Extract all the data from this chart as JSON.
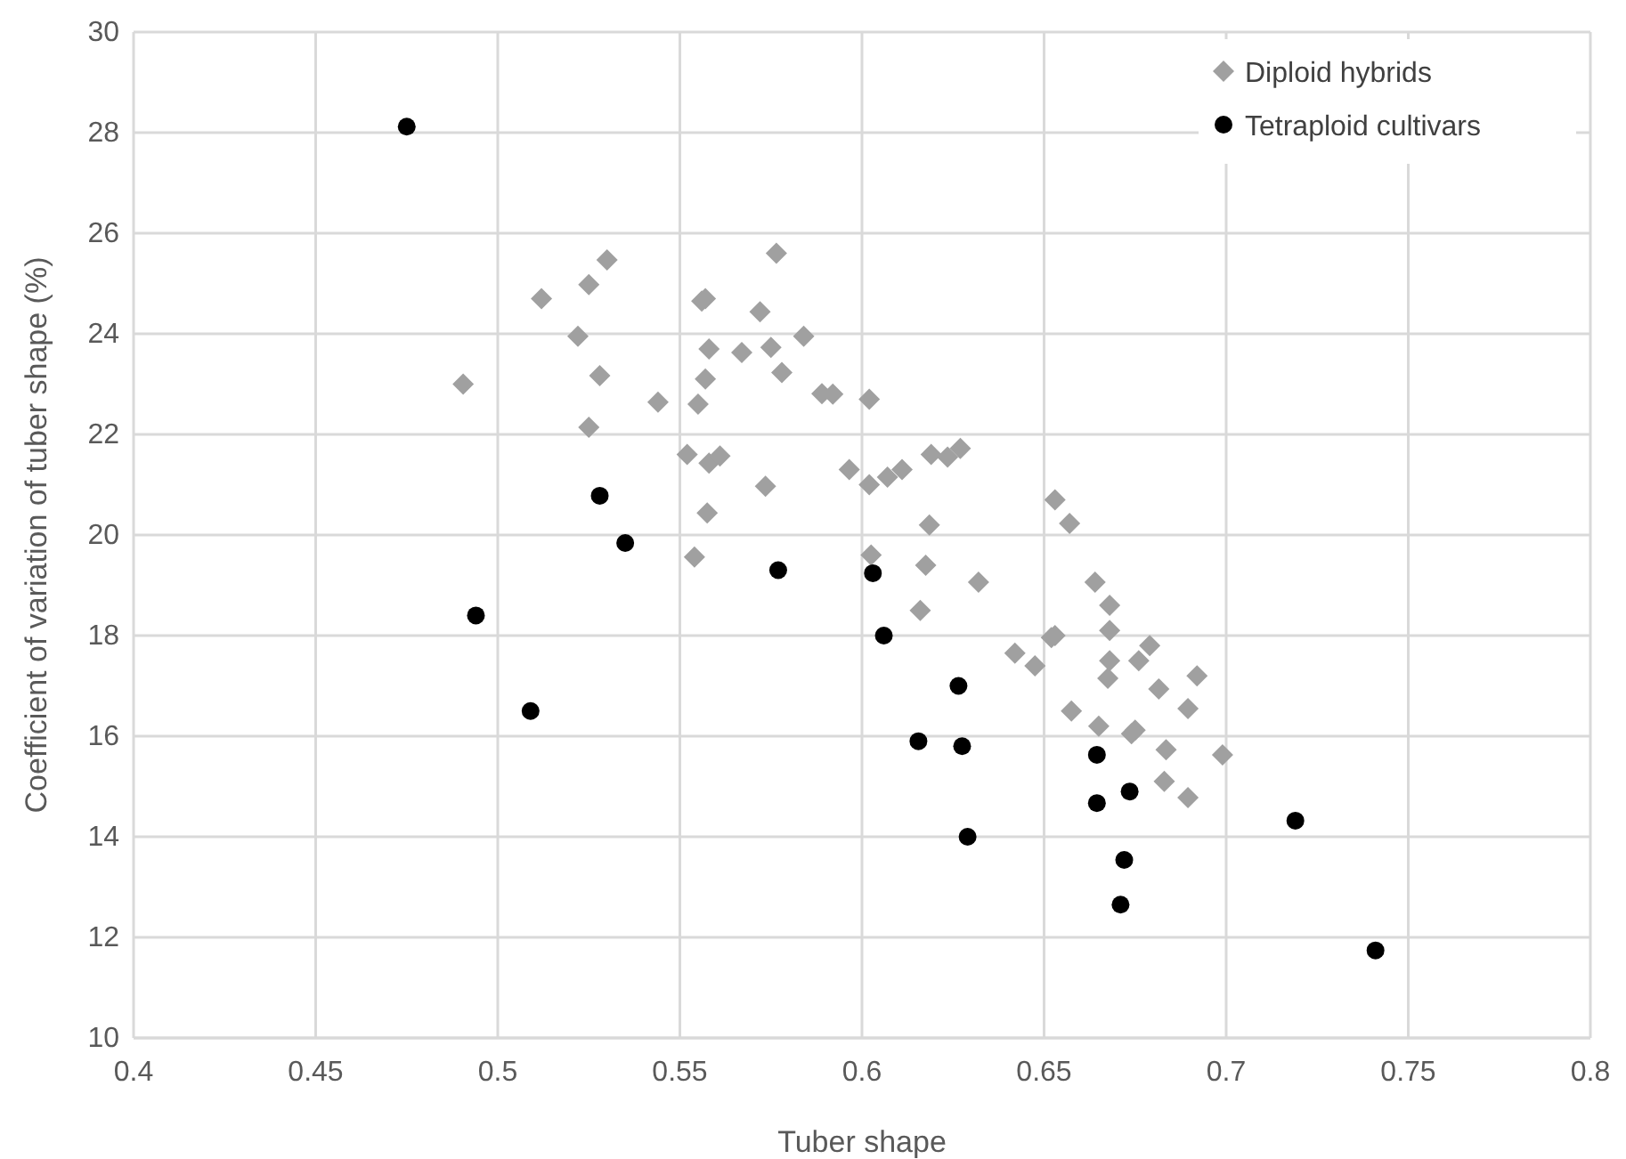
{
  "chart_data": {
    "type": "scatter",
    "xlabel": "Tuber shape",
    "ylabel": "Coefficient of variation of tuber shape (%)",
    "xlim": [
      0.4,
      0.8
    ],
    "xticks": [
      0.4,
      0.45,
      0.5,
      0.55,
      0.6,
      0.65,
      0.7,
      0.75,
      0.8
    ],
    "ylim": [
      10,
      30
    ],
    "yticks": [
      10,
      12,
      14,
      16,
      18,
      20,
      22,
      24,
      26,
      28,
      30
    ],
    "grid": true,
    "legend": "top right",
    "series": [
      {
        "name": "Diploid hybrids",
        "color": "#a0a0a0",
        "marker": "diamond",
        "x": [
          0.4905,
          0.512,
          0.525,
          0.53,
          0.522,
          0.528,
          0.525,
          0.544,
          0.555,
          0.557,
          0.558,
          0.556,
          0.557,
          0.5765,
          0.572,
          0.567,
          0.575,
          0.578,
          0.584,
          0.589,
          0.592,
          0.602,
          0.552,
          0.558,
          0.561,
          0.5735,
          0.5575,
          0.554,
          0.5965,
          0.602,
          0.607,
          0.611,
          0.619,
          0.6235,
          0.627,
          0.653,
          0.657,
          0.6185,
          0.6025,
          0.6175,
          0.632,
          0.616,
          0.664,
          0.668,
          0.668,
          0.653,
          0.652,
          0.642,
          0.6475,
          0.679,
          0.676,
          0.668,
          0.6675,
          0.6815,
          0.692,
          0.6575,
          0.6895,
          0.665,
          0.675,
          0.674,
          0.6835,
          0.699,
          0.683,
          0.6895
        ],
        "values": [
          23.0,
          24.7,
          24.98,
          25.47,
          23.95,
          23.17,
          22.14,
          22.64,
          22.6,
          23.1,
          23.7,
          24.65,
          24.7,
          25.6,
          24.44,
          23.63,
          23.73,
          23.23,
          23.95,
          22.81,
          22.8,
          22.7,
          21.6,
          21.43,
          21.57,
          20.97,
          20.44,
          19.56,
          21.3,
          21.0,
          21.15,
          21.3,
          21.6,
          21.55,
          21.72,
          20.7,
          20.23,
          20.2,
          19.6,
          19.4,
          19.06,
          18.5,
          19.06,
          18.6,
          18.1,
          18.0,
          17.96,
          17.65,
          17.4,
          17.8,
          17.5,
          17.5,
          17.15,
          16.94,
          17.2,
          16.5,
          16.55,
          16.2,
          16.12,
          16.05,
          15.73,
          15.63,
          15.1,
          14.78
        ]
      },
      {
        "name": "Tetraploid cultivars",
        "color": "#000000",
        "marker": "circle",
        "x": [
          0.475,
          0.494,
          0.509,
          0.528,
          0.535,
          0.577,
          0.603,
          0.606,
          0.6265,
          0.6155,
          0.6275,
          0.629,
          0.6645,
          0.6645,
          0.6735,
          0.672,
          0.671,
          0.719,
          0.741
        ],
        "values": [
          28.12,
          18.4,
          16.5,
          20.78,
          19.84,
          19.3,
          19.24,
          18.0,
          17.0,
          15.9,
          15.8,
          14.0,
          15.63,
          14.67,
          14.9,
          13.54,
          12.65,
          14.32,
          11.74
        ]
      }
    ]
  }
}
